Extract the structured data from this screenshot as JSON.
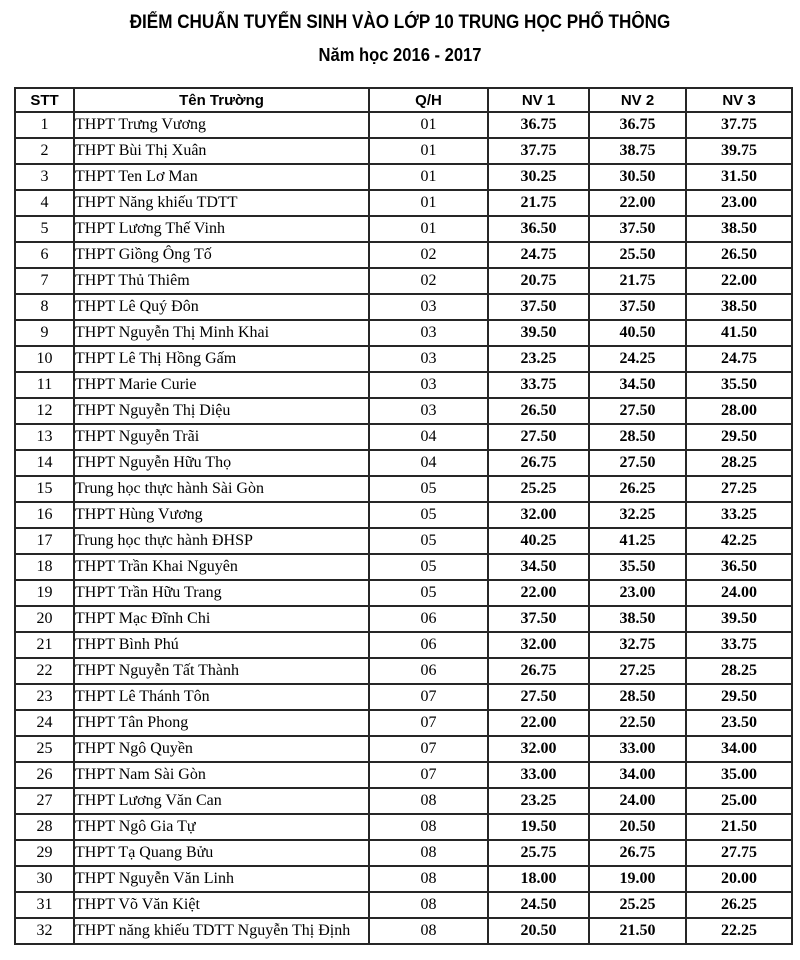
{
  "page": {
    "title": "ĐIỂM CHUẨN TUYỂN SINH VÀO LỚP 10 TRUNG HỌC PHỔ THÔNG",
    "subtitle": "Năm học 2016 - 2017"
  },
  "colors": {
    "background": "#ffffff",
    "text": "#000000",
    "border": "#262626"
  },
  "table": {
    "columns": [
      "STT",
      "Tên Trường",
      "Q/H",
      "NV 1",
      "NV 2",
      "NV 3"
    ],
    "rows": [
      [
        "1",
        "THPT Trưng Vương",
        "01",
        "36.75",
        "36.75",
        "37.75"
      ],
      [
        "2",
        "THPT Bùi Thị Xuân",
        "01",
        "37.75",
        "38.75",
        "39.75"
      ],
      [
        "3",
        "THPT Ten Lơ Man",
        "01",
        "30.25",
        "30.50",
        "31.50"
      ],
      [
        "4",
        "THPT Năng khiếu TDTT",
        "01",
        "21.75",
        "22.00",
        "23.00"
      ],
      [
        "5",
        "THPT Lương Thế Vinh",
        "01",
        "36.50",
        "37.50",
        "38.50"
      ],
      [
        "6",
        "THPT Giồng Ông Tố",
        "02",
        "24.75",
        "25.50",
        "26.50"
      ],
      [
        "7",
        "THPT Thủ Thiêm",
        "02",
        "20.75",
        "21.75",
        "22.00"
      ],
      [
        "8",
        "THPT Lê Quý Đôn",
        "03",
        "37.50",
        "37.50",
        "38.50"
      ],
      [
        "9",
        "THPT Nguyễn Thị Minh Khai",
        "03",
        "39.50",
        "40.50",
        "41.50"
      ],
      [
        "10",
        "THPT Lê Thị Hồng Gấm",
        "03",
        "23.25",
        "24.25",
        "24.75"
      ],
      [
        "11",
        "THPT Marie Curie",
        "03",
        "33.75",
        "34.50",
        "35.50"
      ],
      [
        "12",
        "THPT Nguyễn Thị Diệu",
        "03",
        "26.50",
        "27.50",
        "28.00"
      ],
      [
        "13",
        "THPT Nguyễn Trãi",
        "04",
        "27.50",
        "28.50",
        "29.50"
      ],
      [
        "14",
        "THPT Nguyễn Hữu Thọ",
        "04",
        "26.75",
        "27.50",
        "28.25"
      ],
      [
        "15",
        "Trung học thực hành Sài Gòn",
        "05",
        "25.25",
        "26.25",
        "27.25"
      ],
      [
        "16",
        "THPT Hùng Vương",
        "05",
        "32.00",
        "32.25",
        "33.25"
      ],
      [
        "17",
        "Trung học thực hành ĐHSP",
        "05",
        "40.25",
        "41.25",
        "42.25"
      ],
      [
        "18",
        "THPT Trần Khai Nguyên",
        "05",
        "34.50",
        "35.50",
        "36.50"
      ],
      [
        "19",
        "THPT Trần Hữu Trang",
        "05",
        "22.00",
        "23.00",
        "24.00"
      ],
      [
        "20",
        "THPT Mạc Đĩnh Chi",
        "06",
        "37.50",
        "38.50",
        "39.50"
      ],
      [
        "21",
        "THPT Bình Phú",
        "06",
        "32.00",
        "32.75",
        "33.75"
      ],
      [
        "22",
        "THPT Nguyễn Tất Thành",
        "06",
        "26.75",
        "27.25",
        "28.25"
      ],
      [
        "23",
        "THPT Lê Thánh Tôn",
        "07",
        "27.50",
        "28.50",
        "29.50"
      ],
      [
        "24",
        "THPT Tân Phong",
        "07",
        "22.00",
        "22.50",
        "23.50"
      ],
      [
        "25",
        "THPT Ngô Quyền",
        "07",
        "32.00",
        "33.00",
        "34.00"
      ],
      [
        "26",
        "THPT Nam Sài Gòn",
        "07",
        "33.00",
        "34.00",
        "35.00"
      ],
      [
        "27",
        "THPT Lương Văn Can",
        "08",
        "23.25",
        "24.00",
        "25.00"
      ],
      [
        "28",
        "THPT Ngô Gia Tự",
        "08",
        "19.50",
        "20.50",
        "21.50"
      ],
      [
        "29",
        "THPT Tạ Quang Bửu",
        "08",
        "25.75",
        "26.75",
        "27.75"
      ],
      [
        "30",
        "THPT Nguyễn Văn Linh",
        "08",
        "18.00",
        "19.00",
        "20.00"
      ],
      [
        "31",
        "THPT Võ Văn Kiệt",
        "08",
        "24.50",
        "25.25",
        "26.25"
      ],
      [
        "32",
        "THPT năng khiếu TDTT Nguyễn Thị Định",
        "08",
        "20.50",
        "21.50",
        "22.25"
      ]
    ]
  }
}
